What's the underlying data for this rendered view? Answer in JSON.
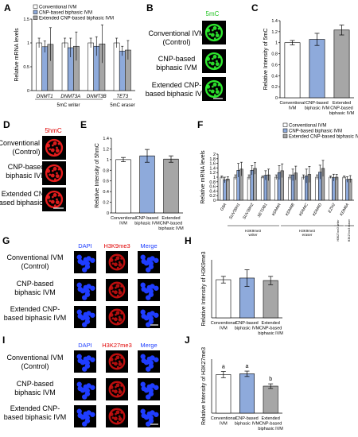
{
  "panel_letters": [
    "A",
    "B",
    "C",
    "D",
    "E",
    "F",
    "G",
    "H",
    "I",
    "J"
  ],
  "groups": [
    "Conventional IVM",
    "CNP-based biphasic IVM",
    "Extended CNP-based biphasic IVM"
  ],
  "group_colors": [
    "#ffffff",
    "#8eaadb",
    "#a6a6a6"
  ],
  "image_rows": {
    "B": [
      "Conventional IVM",
      "(Control)",
      "CNP-based",
      "biphasic IVM",
      "Extended CNP-",
      "based biphasic IVM"
    ],
    "D": [
      "Conventional IVM",
      "(Control)",
      "CNP-based",
      "biphasic IVM",
      "Extended CNP-",
      "based biphasic IVM"
    ],
    "G": [
      "Conventional IVM",
      "(Control)",
      "CNP-based",
      "biphasic IVM",
      "Extended CNP-",
      "based biphasic IVM"
    ],
    "I": [
      "Conventional IVM",
      "(Control)",
      "CNP-based",
      "biphasic IVM",
      "Extended CNP-",
      "based biphasic IVM"
    ]
  },
  "stain_labels": {
    "B": "5mC",
    "D": "5hmC",
    "G": [
      "DAPI",
      "H3K9me3",
      "Merge"
    ],
    "I": [
      "DAPI",
      "H3K27me3",
      "Merge"
    ]
  },
  "group_ticks_short": [
    [
      "Conventional",
      "IVM"
    ],
    [
      "CNP-based",
      "biphasic IVM"
    ],
    [
      "Extended",
      "CNP-based",
      "biphasic IVM"
    ]
  ],
  "chart_data": [
    {
      "panel": "A",
      "type": "bar",
      "ylabel": "Relative mRNA levels",
      "ylim": [
        0,
        1.5
      ],
      "yticks": [
        0,
        0.5,
        1,
        1.5
      ],
      "categories": [
        "DNMT1",
        "DNMT3A",
        "DNMT3B",
        "TET3"
      ],
      "series": [
        {
          "name": "Conventional IVM",
          "values": [
            1.0,
            1.0,
            1.0,
            1.0
          ],
          "errors": [
            0.1,
            0.1,
            0.1,
            0.1
          ]
        },
        {
          "name": "CNP-based biphasic IVM",
          "values": [
            0.92,
            0.9,
            0.93,
            0.83
          ],
          "errors": [
            0.12,
            0.2,
            0.2,
            0.1
          ]
        },
        {
          "name": "Extended CNP-based biphasic IVM",
          "values": [
            0.97,
            0.93,
            0.98,
            0.85
          ],
          "errors": [
            0.35,
            0.3,
            0.4,
            0.2
          ]
        }
      ],
      "group_labels": [
        "5mC writer",
        "5mC eraser"
      ]
    },
    {
      "panel": "C",
      "type": "bar",
      "ylabel": "Relative Intensity of 5mC",
      "ylim": [
        0,
        1.4
      ],
      "yticks": [
        0,
        0.2,
        0.4,
        0.6,
        0.8,
        1,
        1.2,
        1.4
      ],
      "categories": [
        "Conventional IVM",
        "CNP-based biphasic IVM",
        "Extended CNP-based biphasic IVM"
      ],
      "values": [
        1.0,
        1.06,
        1.23
      ],
      "errors": [
        0.04,
        0.11,
        0.09
      ]
    },
    {
      "panel": "E",
      "type": "bar",
      "ylabel": "Relative Intensity of 5hmC",
      "ylim": [
        0,
        1.4
      ],
      "yticks": [
        0,
        0.2,
        0.4,
        0.6,
        0.8,
        1,
        1.2,
        1.4
      ],
      "categories": [
        "Conventional IVM",
        "CNP-based biphasic IVM",
        "Extended CNP-based biphasic IVM"
      ],
      "values": [
        1.0,
        1.07,
        1.01
      ],
      "errors": [
        0.04,
        0.12,
        0.06
      ]
    },
    {
      "panel": "F",
      "type": "bar",
      "ylabel": "Relative mRNA levels",
      "ylim": [
        0,
        2
      ],
      "yticks": [
        0,
        0.2,
        0.4,
        0.6,
        0.8,
        1,
        1.2,
        1.4,
        1.6,
        1.8,
        2
      ],
      "categories": [
        "G9A",
        "SUV39H1",
        "SUV39H2",
        "SETDB1",
        "KDM4A",
        "KDM4B",
        "KDM4C",
        "KDM4D",
        "EZH2",
        "KDM6A"
      ],
      "series": [
        {
          "name": "Conventional IVM",
          "values": [
            1,
            1,
            1,
            1,
            1,
            1,
            1,
            1,
            1,
            1
          ],
          "errors": [
            0.05,
            0.1,
            0.1,
            0.05,
            0.1,
            0.1,
            0.1,
            0.1,
            0.05,
            0.05
          ]
        },
        {
          "name": "CNP-based biphasic IVM",
          "values": [
            0.88,
            1.3,
            1.3,
            1.08,
            1.2,
            1.1,
            1.05,
            1.22,
            0.98,
            0.9
          ],
          "errors": [
            0.12,
            0.3,
            0.2,
            0.2,
            0.3,
            0.25,
            0.3,
            0.3,
            0.15,
            0.12
          ]
        },
        {
          "name": "Extended CNP-based biphasic IVM",
          "values": [
            0.92,
            1.35,
            1.38,
            1.1,
            1.28,
            1.18,
            1.12,
            1.38,
            1.0,
            0.92
          ],
          "errors": [
            0.1,
            0.3,
            0.25,
            0.25,
            0.3,
            0.3,
            0.35,
            0.35,
            0.12,
            0.15
          ]
        }
      ],
      "group_labels": [
        "H3K9me3 writer",
        "H3K9me3 eraser",
        "H3K27me3 writer",
        "H3K27me3 eraser"
      ]
    },
    {
      "panel": "H",
      "type": "bar",
      "ylabel": "Relative Intensity of H3K9me3",
      "ylim": [
        0,
        1.4
      ],
      "categories": [
        "Conventional IVM",
        "CNP-based biphasic IVM",
        "Extended CNP-based biphasic IVM"
      ],
      "values": [
        0.92,
        0.96,
        0.9
      ],
      "errors": [
        0.08,
        0.2,
        0.1
      ]
    },
    {
      "panel": "J",
      "type": "bar",
      "ylabel": "Relative Intensity of H3K27me3",
      "ylim": [
        0,
        1.4
      ],
      "categories": [
        "Conventional IVM",
        "CNP-based biphasic IVM",
        "Extended CNP-based biphasic IVM"
      ],
      "values": [
        1.0,
        1.02,
        0.7
      ],
      "errors": [
        0.08,
        0.07,
        0.06
      ],
      "significance": [
        "a",
        "a",
        "b"
      ]
    }
  ]
}
